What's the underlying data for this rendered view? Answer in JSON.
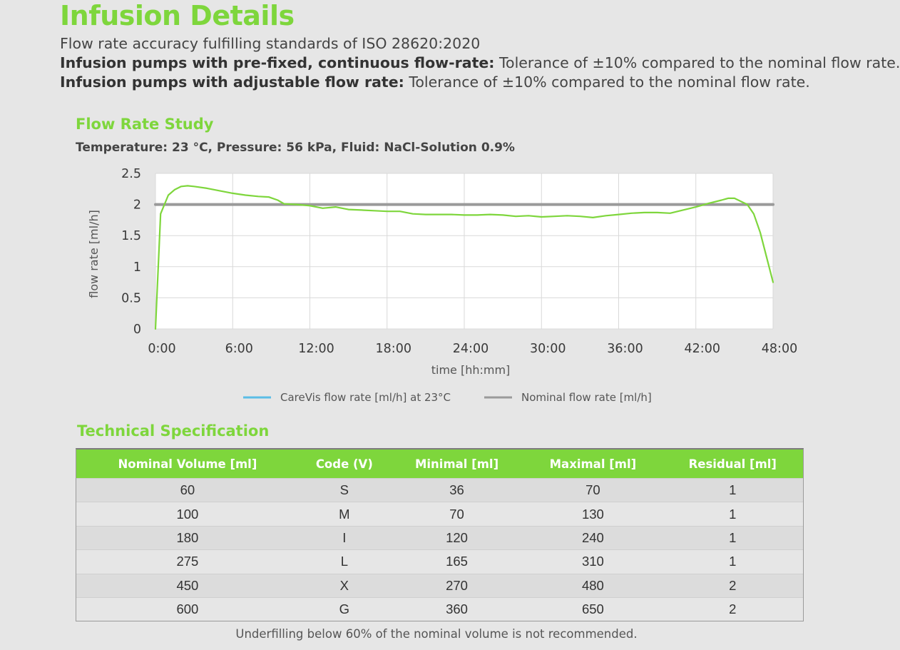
{
  "header": {
    "title": "Infusion Details",
    "line1": "Flow rate accuracy fulfilling standards of ISO 28620:2020",
    "line2_bold": "Infusion pumps with pre-fixed, continuous flow-rate:",
    "line2_rest": " Tolerance of ±10% compared to the nominal flow rate.",
    "line3_bold": "Infusion pumps with adjustable flow rate:",
    "line3_rest": " Tolerance of ±10% compared to the nominal flow rate."
  },
  "study": {
    "title": "Flow Rate Study",
    "conditions": "Temperature: 23 °C, Pressure: 56 kPa, Fluid: NaCl-Solution 0.9%"
  },
  "chart_data": {
    "type": "line",
    "xlabel": "time  [hh:mm]",
    "ylabel": "flow rate [ml/h]",
    "xlim": [
      0,
      48
    ],
    "ylim": [
      0,
      2.5
    ],
    "x_ticks": [
      0,
      6,
      12,
      18,
      24,
      30,
      36,
      42,
      48
    ],
    "x_tick_labels": [
      "0:00",
      "6:00",
      "12:00",
      "18:00",
      "24:00",
      "30:00",
      "36:00",
      "42:00",
      "48:00"
    ],
    "y_ticks": [
      0,
      0.5,
      1,
      1.5,
      2,
      2.5
    ],
    "y_tick_labels": [
      "0",
      "0.5",
      "1",
      "1.5",
      "2",
      "2.5"
    ],
    "grid": true,
    "legend_position": "bottom",
    "series": [
      {
        "name": "CareVis flow rate [ml/h] at 23°C",
        "color": "#7ed63c",
        "legend_color": "#5bbde6",
        "x": [
          0,
          0.4,
          1,
          1.5,
          2,
          2.5,
          3,
          4,
          5,
          6,
          7,
          8,
          8.8,
          9.5,
          10,
          11,
          12,
          13,
          14,
          15,
          16,
          17,
          18,
          19,
          20,
          21,
          22,
          23,
          24,
          25,
          26,
          27,
          28,
          29,
          30,
          31,
          32,
          33,
          34,
          35,
          36,
          37,
          38,
          39,
          40,
          41,
          42,
          43,
          44,
          44.5,
          45,
          45.5,
          46,
          46.5,
          47,
          47.5,
          48
        ],
        "y": [
          0.0,
          1.85,
          2.15,
          2.24,
          2.29,
          2.3,
          2.29,
          2.26,
          2.22,
          2.18,
          2.15,
          2.13,
          2.12,
          2.07,
          2.01,
          2.0,
          1.98,
          1.94,
          1.96,
          1.92,
          1.91,
          1.9,
          1.89,
          1.89,
          1.85,
          1.84,
          1.84,
          1.84,
          1.83,
          1.83,
          1.84,
          1.83,
          1.81,
          1.82,
          1.8,
          1.81,
          1.82,
          1.81,
          1.79,
          1.82,
          1.84,
          1.86,
          1.87,
          1.87,
          1.86,
          1.91,
          1.96,
          2.02,
          2.07,
          2.1,
          2.1,
          2.05,
          2.0,
          1.85,
          1.55,
          1.15,
          0.75
        ]
      },
      {
        "name": "Nominal flow rate [ml/h]",
        "color": "#9a9a9a",
        "legend_color": "#9a9a9a",
        "x": [
          0,
          48
        ],
        "y": [
          2,
          2
        ]
      }
    ]
  },
  "spec": {
    "title": "Technical Specification",
    "headers": [
      "Nominal Volume [ml]",
      "Code (V)",
      "Minimal [ml]",
      "Maximal [ml]",
      "Residual [ml]"
    ],
    "rows": [
      [
        "60",
        "S",
        "36",
        "70",
        "1"
      ],
      [
        "100",
        "M",
        "70",
        "130",
        "1"
      ],
      [
        "180",
        "I",
        "120",
        "240",
        "1"
      ],
      [
        "275",
        "L",
        "165",
        "310",
        "1"
      ],
      [
        "450",
        "X",
        "270",
        "480",
        "2"
      ],
      [
        "600",
        "G",
        "360",
        "650",
        "2"
      ]
    ],
    "footnote": "Underfilling below 60% of the nominal volume is not recommended."
  }
}
